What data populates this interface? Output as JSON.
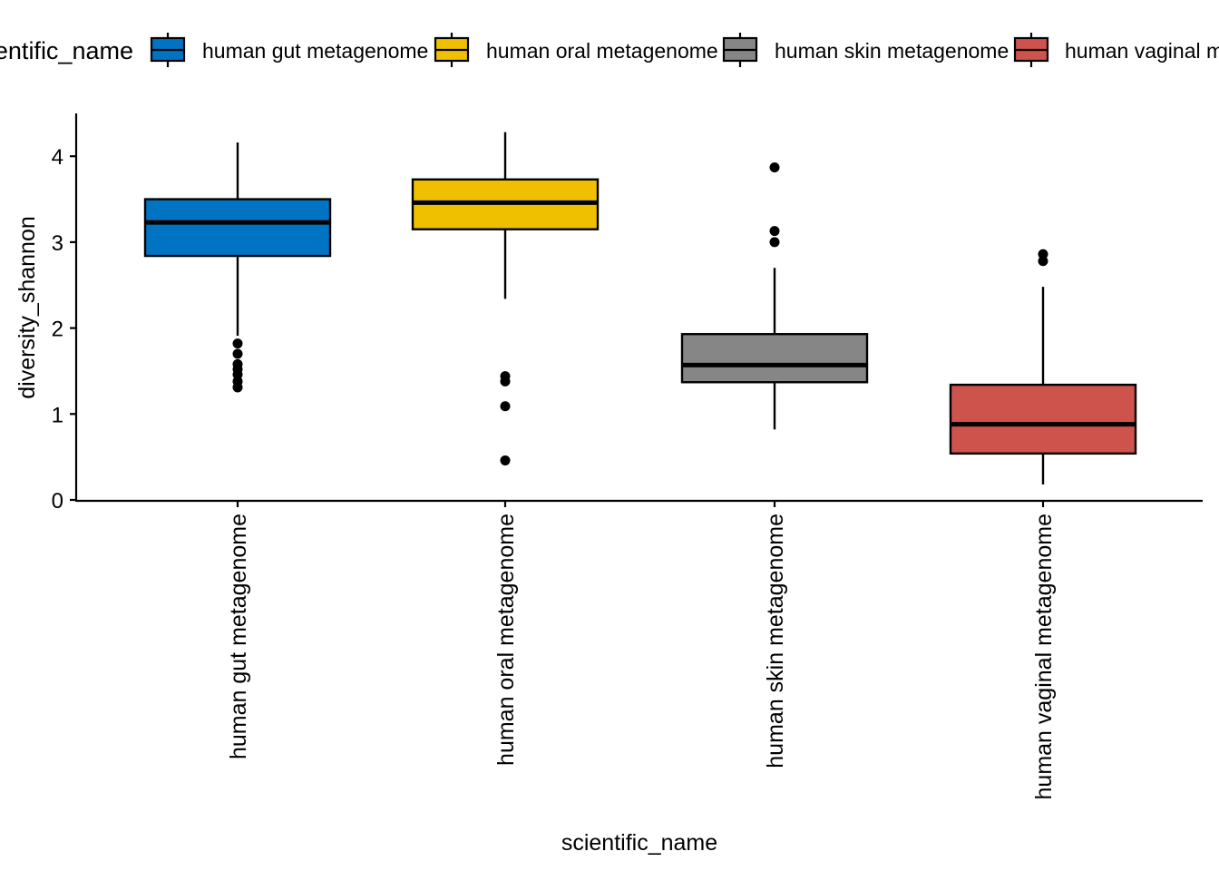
{
  "chart_data": {
    "type": "boxplot",
    "title": "",
    "xlabel": "scientific_name",
    "ylabel": "diversity_shannon",
    "ylim": [
      0,
      4.5
    ],
    "yticks": [
      0,
      1,
      2,
      3,
      4
    ],
    "grid": false,
    "legend": {
      "position": "top",
      "title": "scientific_name",
      "entries": [
        "human gut metagenome",
        "human oral metagenome",
        "human skin metagenome",
        "human vaginal metagenome"
      ]
    },
    "categories": [
      "human gut metagenome",
      "human oral metagenome",
      "human skin metagenome",
      "human vaginal metagenome"
    ],
    "colors": [
      "#0073C2",
      "#EFC000",
      "#868686",
      "#CD534C"
    ],
    "boxes": [
      {
        "name": "human gut metagenome",
        "whisker_low": 1.91,
        "q1": 2.84,
        "median": 3.23,
        "q3": 3.5,
        "whisker_high": 4.16,
        "outliers": [
          1.82,
          1.7,
          1.58,
          1.52,
          1.46,
          1.38,
          1.31
        ]
      },
      {
        "name": "human oral metagenome",
        "whisker_low": 2.34,
        "q1": 3.15,
        "median": 3.46,
        "q3": 3.73,
        "whisker_high": 4.28,
        "outliers": [
          1.44,
          1.38,
          1.09,
          0.46
        ]
      },
      {
        "name": "human skin metagenome",
        "whisker_low": 0.82,
        "q1": 1.37,
        "median": 1.57,
        "q3": 1.93,
        "whisker_high": 2.7,
        "outliers": [
          3.87,
          3.13,
          3.0
        ]
      },
      {
        "name": "human vaginal metagenome",
        "whisker_low": 0.18,
        "q1": 0.54,
        "median": 0.88,
        "q3": 1.34,
        "whisker_high": 2.48,
        "outliers": [
          2.86,
          2.78
        ]
      }
    ]
  }
}
